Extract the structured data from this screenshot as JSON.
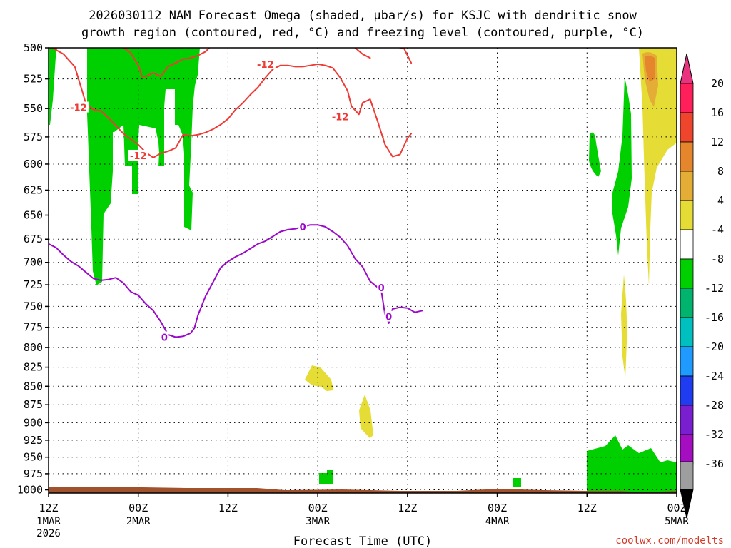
{
  "title_line1": "2026030112 NAM Forecast Omega (shaded, μbar/s) for KSJC with dendritic snow",
  "title_line2": "growth region (contoured, red, °C) and freezing level (contoured, purple, °C)",
  "credit": "coolwx.com/modelts",
  "colors": {
    "dgz_contour": "#ee3b35",
    "freezing_contour": "#9b09c9",
    "terrain": "#a0522d",
    "omega_green": "#00d000",
    "omega_yellow": "#e5dd35",
    "omega_orange_light": "#e3ad36",
    "omega_orange": "#e5862d"
  },
  "chart_data": {
    "type": "heatmap",
    "title": "2026030112 NAM Forecast Omega (shaded, μbar/s) for KSJC with dendritic snow growth region (contoured, red, °C) and freezing level (contoured, purple, °C)",
    "xlabel": "Forecast Time (UTC)",
    "ylabel": "",
    "x_ticks": [
      {
        "hour": 0,
        "label": "12Z",
        "sub1": "1MAR",
        "sub2": "2026"
      },
      {
        "hour": 12,
        "label": "00Z",
        "sub1": "2MAR",
        "sub2": ""
      },
      {
        "hour": 24,
        "label": "12Z",
        "sub1": "",
        "sub2": ""
      },
      {
        "hour": 36,
        "label": "00Z",
        "sub1": "3MAR",
        "sub2": ""
      },
      {
        "hour": 48,
        "label": "12Z",
        "sub1": "",
        "sub2": ""
      },
      {
        "hour": 60,
        "label": "00Z",
        "sub1": "4MAR",
        "sub2": ""
      },
      {
        "hour": 72,
        "label": "12Z",
        "sub1": "",
        "sub2": ""
      },
      {
        "hour": 84,
        "label": "00Z",
        "sub1": "5MAR",
        "sub2": ""
      }
    ],
    "xlim": [
      0,
      84
    ],
    "y_ticks": [
      500,
      525,
      550,
      575,
      600,
      625,
      650,
      675,
      700,
      725,
      750,
      775,
      800,
      825,
      850,
      875,
      900,
      925,
      950,
      975,
      1000
    ],
    "ylim": [
      500,
      1005
    ],
    "y_scale": "log-pressure",
    "grid": true,
    "colorbar": {
      "levels": [
        20,
        16,
        12,
        8,
        4,
        -4,
        -8,
        -12,
        -16,
        -20,
        -24,
        -28,
        -32,
        -36
      ],
      "colors": [
        "#ff1f5a",
        "#f0452d",
        "#e5862d",
        "#e3ad36",
        "#e5dd35",
        "#ffffff",
        "#00d000",
        "#00b46e",
        "#00bfbf",
        "#1f9bff",
        "#1f3cf0",
        "#7a1fd0",
        "#a40ec0",
        "#9e9e9e"
      ],
      "top_color": "#e8337f",
      "bottom_color": "#000000"
    },
    "contours": [
      {
        "name": "-12",
        "color": "#ee3b35",
        "label_points": [
          [
            4,
            549
          ],
          [
            12,
            592
          ],
          [
            29,
            513
          ],
          [
            39,
            557
          ]
        ],
        "paths": [
          [
            [
              0.5,
              500
            ],
            [
              2,
              505
            ],
            [
              3.5,
              515
            ],
            [
              4,
              525
            ],
            [
              4.5,
              535
            ],
            [
              5,
              546
            ],
            [
              6,
              551
            ],
            [
              7,
              552
            ],
            [
              8,
              558
            ],
            [
              9,
              565
            ],
            [
              10,
              572
            ],
            [
              11,
              577
            ],
            [
              12,
              582
            ],
            [
              13,
              589
            ],
            [
              14,
              594
            ],
            [
              15,
              590
            ],
            [
              16,
              588
            ],
            [
              17,
              585
            ],
            [
              18,
              573
            ],
            [
              19,
              574
            ],
            [
              20,
              573
            ],
            [
              21,
              571
            ],
            [
              22,
              568
            ],
            [
              23,
              564
            ],
            [
              24,
              559
            ],
            [
              25,
              551
            ],
            [
              26,
              545
            ],
            [
              27,
              538
            ],
            [
              28,
              532
            ],
            [
              29,
              524
            ],
            [
              30,
              517
            ],
            [
              31,
              514
            ],
            [
              32,
              514
            ],
            [
              33,
              515
            ],
            [
              34,
              515
            ],
            [
              35,
              514
            ],
            [
              36,
              513
            ],
            [
              37,
              514
            ],
            [
              38,
              516
            ],
            [
              39,
              524
            ],
            [
              40,
              535
            ],
            [
              40.5,
              548
            ],
            [
              41.5,
              555
            ],
            [
              42,
              545
            ],
            [
              43,
              542
            ],
            [
              44,
              561
            ],
            [
              45,
              582
            ],
            [
              46,
              593
            ],
            [
              47,
              591
            ],
            [
              48,
              576
            ],
            [
              48.5,
              572
            ]
          ],
          [
            [
              0,
              500
            ],
            [
              1,
              500
            ]
          ],
          [
            [
              10,
              500
            ],
            [
              11,
              504
            ],
            [
              12,
              514
            ],
            [
              12.5,
              523
            ],
            [
              13,
              523
            ],
            [
              14,
              520
            ],
            [
              15,
              523
            ],
            [
              16,
              515
            ],
            [
              17,
              512
            ],
            [
              18,
              509
            ],
            [
              19,
              508
            ],
            [
              20,
              506
            ],
            [
              21,
              503
            ],
            [
              21.5,
              500
            ]
          ],
          [
            [
              41,
              500
            ],
            [
              42,
              505
            ],
            [
              43,
              508
            ]
          ],
          [
            [
              47,
              500
            ],
            [
              47.5,
              500
            ],
            [
              48.5,
              512
            ]
          ]
        ]
      },
      {
        "name": "0",
        "color": "#9b09c9",
        "label_points": [
          [
            15.5,
            787
          ],
          [
            34,
            662
          ],
          [
            44.5,
            728
          ],
          [
            45.5,
            762
          ]
        ],
        "paths": [
          [
            [
              0,
              680
            ],
            [
              1,
              684
            ],
            [
              2,
              692
            ],
            [
              3,
              699
            ],
            [
              4,
              704
            ],
            [
              5,
              711
            ],
            [
              6,
              718
            ],
            [
              7,
              720
            ],
            [
              8,
              719
            ],
            [
              9,
              717
            ],
            [
              10,
              723
            ],
            [
              11,
              733
            ],
            [
              12,
              737
            ],
            [
              13,
              747
            ],
            [
              14,
              755
            ],
            [
              15,
              768
            ],
            [
              16,
              784
            ],
            [
              17,
              787
            ],
            [
              18,
              786
            ],
            [
              19,
              782
            ],
            [
              19.5,
              776
            ],
            [
              20,
              760
            ],
            [
              21,
              738
            ],
            [
              22,
              722
            ],
            [
              23,
              706
            ],
            [
              24,
              699
            ],
            [
              25,
              694
            ],
            [
              26,
              690
            ],
            [
              27,
              685
            ],
            [
              28,
              680
            ],
            [
              29,
              677
            ],
            [
              30,
              672
            ],
            [
              31,
              667
            ],
            [
              32,
              665
            ],
            [
              33,
              664
            ],
            [
              34,
              662
            ],
            [
              35,
              660
            ],
            [
              36,
              660
            ],
            [
              37,
              662
            ],
            [
              38,
              667
            ],
            [
              39,
              673
            ],
            [
              40,
              682
            ],
            [
              41,
              696
            ],
            [
              42,
              705
            ],
            [
              43,
              721
            ],
            [
              44,
              728
            ],
            [
              44.5,
              732
            ],
            [
              45,
              760
            ],
            [
              45.5,
              770
            ],
            [
              46,
              753
            ],
            [
              47,
              751
            ],
            [
              48,
              752
            ],
            [
              49,
              757
            ],
            [
              50,
              755
            ]
          ]
        ]
      }
    ],
    "shaded_regions": [
      {
        "level": "-4 to -8",
        "color": "#00d000",
        "note": "upward motion bands 1 Mar 12Z-2 Mar 06Z, 500-725 mb"
      },
      {
        "level": "-4 to -8",
        "color": "#00d000",
        "note": "near-surface bands 4 Mar 12Z-5 Mar 00Z, 925-985 mb"
      },
      {
        "level": "4 to 8",
        "color": "#e5dd35",
        "note": "small cells near 830-900 mb around 3 Mar 00Z-06Z"
      },
      {
        "level": "4 to 16",
        "color": "#e5862d",
        "note": "subsidence 500-725 mb near 4 Mar 18Z-5 Mar 00Z"
      }
    ]
  }
}
